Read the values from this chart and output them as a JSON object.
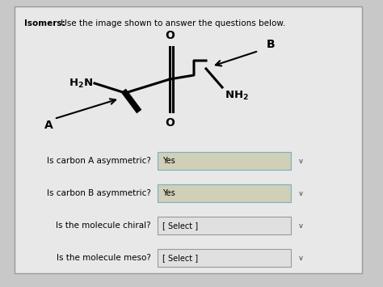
{
  "title_bold": "Isomers:",
  "title_rest": " Use the image shown to answer the questions below.",
  "bg_color": "#c8c8c8",
  "card_color": "#e8e8e8",
  "questions": [
    {
      "text": "Is carbon A asymmetric?",
      "answer": "Yes",
      "has_answer": true
    },
    {
      "text": "Is carbon B asymmetric?",
      "answer": "Yes",
      "has_answer": true
    },
    {
      "text": "Is the molecule chiral?",
      "answer": "[ Select ]",
      "has_answer": false
    },
    {
      "text": "Is the molecule meso?",
      "answer": "[ Select ]",
      "has_answer": false
    }
  ],
  "dropdown_color_filled": "#d0cfb8",
  "dropdown_color_empty": "#e0e0e0",
  "title_fontsize": 7.5,
  "question_fontsize": 7.5,
  "answer_fontsize": 7.0
}
